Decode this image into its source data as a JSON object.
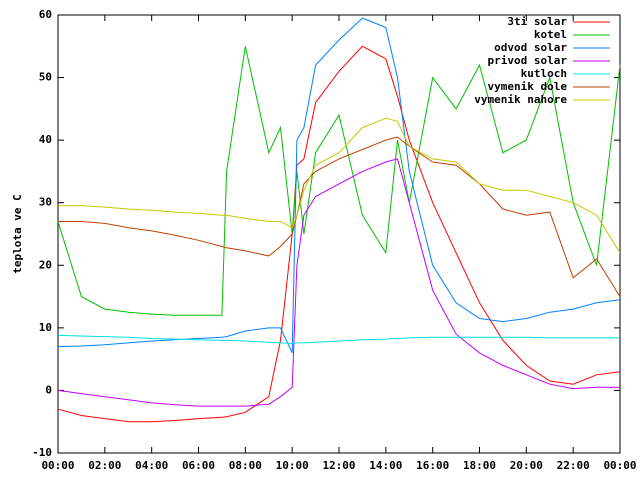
{
  "chart_data": {
    "type": "line",
    "y_label": "teplota ve C",
    "x": [
      0,
      1,
      2,
      3,
      4,
      5,
      6,
      7,
      7.2,
      8,
      9,
      9.5,
      10,
      10.2,
      10.5,
      11,
      12,
      13,
      14,
      14.5,
      15,
      16,
      17,
      18,
      19,
      20,
      21,
      22,
      23,
      24
    ],
    "series": [
      {
        "name": "3ti solar",
        "color": "#ff0000",
        "values": [
          -3,
          -4,
          -4.5,
          -5,
          -5,
          -4.8,
          -4.5,
          -4.3,
          -4.2,
          -3.5,
          -1,
          8,
          25,
          36,
          37,
          46,
          51,
          55,
          53,
          47,
          40,
          30,
          22,
          14,
          8,
          4,
          1.5,
          1,
          2.5,
          3
        ]
      },
      {
        "name": "kotel",
        "color": "#00c000",
        "values": [
          27,
          15,
          13,
          12.5,
          12.2,
          12,
          12,
          12,
          35,
          55,
          38,
          42,
          25,
          35,
          25,
          38,
          44,
          28,
          22,
          40,
          30,
          50,
          45,
          52,
          38,
          40,
          50,
          30,
          20,
          52
        ]
      },
      {
        "name": "odvod solar",
        "color": "#0080ff",
        "values": [
          7,
          7.1,
          7.3,
          7.6,
          7.9,
          8.1,
          8.3,
          8.5,
          8.6,
          9.5,
          10,
          10,
          6,
          40,
          42,
          52,
          56,
          59.5,
          58,
          50,
          35,
          20,
          14,
          11.5,
          11,
          11.5,
          12.5,
          13,
          14,
          14.5
        ]
      },
      {
        "name": "privod solar",
        "color": "#c000ff",
        "values": [
          0,
          -0.5,
          -1,
          -1.5,
          -2,
          -2.3,
          -2.5,
          -2.5,
          -2.5,
          -2.5,
          -2.2,
          -1,
          0.5,
          20,
          28,
          31,
          33,
          35,
          36.5,
          37,
          30,
          16,
          9,
          6,
          4,
          2.5,
          1,
          0.3,
          0.5,
          0.5
        ]
      },
      {
        "name": "kutloch",
        "color": "#00e0e0",
        "values": [
          8.8,
          8.7,
          8.6,
          8.5,
          8.3,
          8.2,
          8.1,
          8,
          8,
          7.9,
          7.7,
          7.6,
          7.5,
          7.6,
          7.6,
          7.7,
          7.9,
          8.1,
          8.2,
          8.3,
          8.4,
          8.5,
          8.5,
          8.5,
          8.5,
          8.5,
          8.4,
          8.4,
          8.4,
          8.4
        ]
      },
      {
        "name": "vymenik dole",
        "color": "#c04000",
        "values": [
          27,
          27,
          26.7,
          26,
          25.5,
          24.8,
          24,
          23,
          22.8,
          22.3,
          21.5,
          23,
          25,
          28,
          33,
          35,
          37,
          38.5,
          40,
          40.5,
          39,
          36.5,
          36,
          33,
          29,
          28,
          28.5,
          18,
          21,
          15
        ]
      },
      {
        "name": "vymenik nahore",
        "color": "#c8c800",
        "values": [
          29.5,
          29.5,
          29.3,
          29,
          28.8,
          28.5,
          28.3,
          28,
          28,
          27.5,
          27,
          27,
          26,
          28,
          32,
          36,
          38,
          42,
          43.5,
          43,
          39,
          37,
          36.5,
          33,
          32,
          32,
          31,
          30,
          28,
          22
        ]
      }
    ],
    "xlim": [
      0,
      24
    ],
    "xticks": [
      {
        "value": 0,
        "label": "00:00"
      },
      {
        "value": 2,
        "label": "02:00"
      },
      {
        "value": 4,
        "label": "04:00"
      },
      {
        "value": 6,
        "label": "06:00"
      },
      {
        "value": 8,
        "label": "08:00"
      },
      {
        "value": 10,
        "label": "10:00"
      },
      {
        "value": 12,
        "label": "12:00"
      },
      {
        "value": 14,
        "label": "14:00"
      },
      {
        "value": 16,
        "label": "16:00"
      },
      {
        "value": 18,
        "label": "18:00"
      },
      {
        "value": 20,
        "label": "20:00"
      },
      {
        "value": 22,
        "label": "22:00"
      },
      {
        "value": 24,
        "label": "00:00"
      }
    ],
    "ylim": [
      -10,
      60
    ],
    "yticks": [
      -10,
      0,
      10,
      20,
      30,
      40,
      50,
      60
    ],
    "legend": "top-right"
  }
}
